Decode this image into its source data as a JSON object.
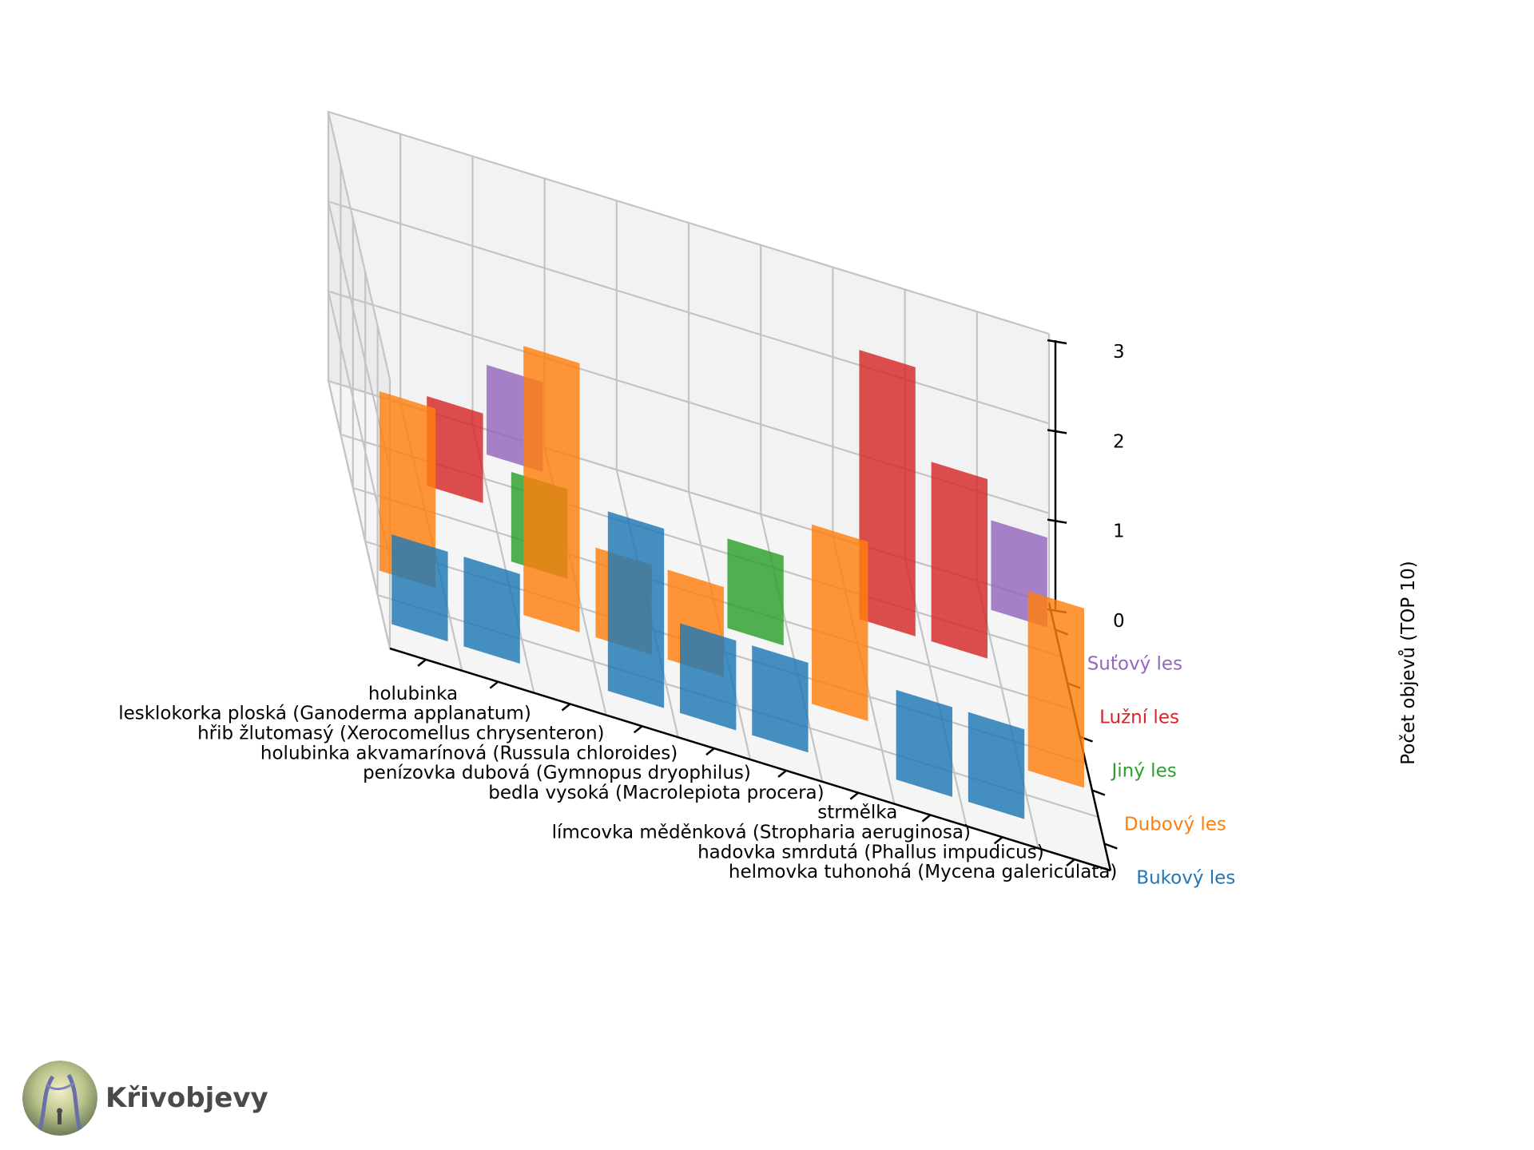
{
  "brand": {
    "name": "Křivobjevy",
    "logo_icon": "forest-tree-logo-icon"
  },
  "chart_data": {
    "type": "bar3d",
    "zlabel": "Počet objevů (TOP 10)",
    "zlim": [
      0,
      3
    ],
    "zticks": [
      "0",
      "1",
      "2",
      "3"
    ],
    "categories": [
      "holubinka",
      "lesklokorka ploská (Ganoderma applanatum)",
      "hřib žlutomasý (Xerocomellus chrysenteron)",
      "holubinka akvamarínová (Russula chloroides)",
      "penízovka dubová (Gymnopus dryophilus)",
      "bedla vysoká (Macrolepiota procera)",
      "strmělka",
      "límcovka měděnková (Stropharia aeruginosa)",
      "hadovka smrdutá (Phallus impudicus)",
      "helmovka tuhonohá (Mycena galericulata)"
    ],
    "series": [
      {
        "name": "Bukový les",
        "color": "#1f77b4",
        "values": [
          1,
          1,
          0,
          2,
          1,
          1,
          0,
          1,
          1,
          0
        ]
      },
      {
        "name": "Dubový les",
        "color": "#ff7f0e",
        "values": [
          2,
          0,
          3,
          1,
          1,
          0,
          2,
          0,
          0,
          2
        ]
      },
      {
        "name": "Jiný les",
        "color": "#2ca02c",
        "values": [
          0,
          0,
          1,
          0,
          0,
          1,
          0,
          0,
          0,
          0
        ]
      },
      {
        "name": "Lužní les",
        "color": "#d62728",
        "values": [
          0,
          1,
          0,
          0,
          0,
          0,
          0,
          3,
          2,
          0
        ]
      },
      {
        "name": "Suťový les",
        "color": "#9467bd",
        "values": [
          0,
          0,
          1,
          0,
          0,
          0,
          0,
          0,
          0,
          1
        ]
      }
    ]
  }
}
